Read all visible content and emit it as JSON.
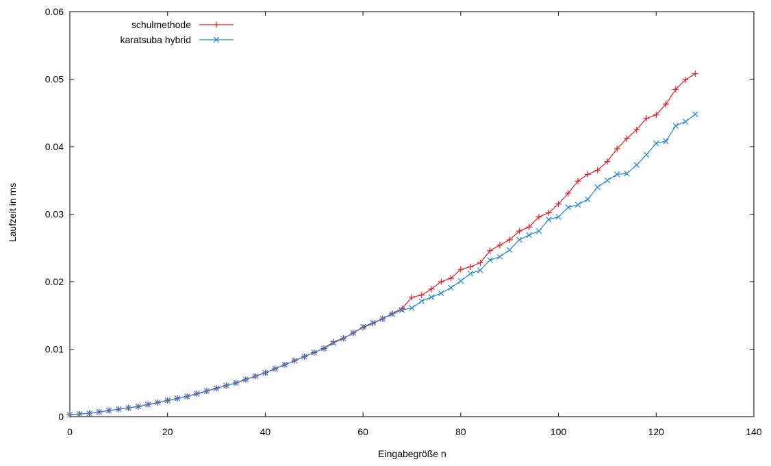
{
  "chart_data": {
    "type": "line",
    "title": "",
    "xlabel": "Eingabegröße n",
    "ylabel": "Laufzeit in ms",
    "xlim": [
      0,
      140
    ],
    "ylim": [
      0,
      0.06
    ],
    "xticks": [
      0,
      20,
      40,
      60,
      80,
      100,
      120,
      140
    ],
    "xtick_labels": [
      "0",
      "20",
      "40",
      "60",
      "80",
      "100",
      "120",
      "140"
    ],
    "yticks": [
      0,
      0.01,
      0.02,
      0.03,
      0.04,
      0.05,
      0.06
    ],
    "ytick_labels": [
      "0",
      "0.01",
      "0.02",
      "0.03",
      "0.04",
      "0.05",
      "0.06"
    ],
    "grid": false,
    "legend_position": "top-left",
    "x": [
      0,
      2,
      4,
      6,
      8,
      10,
      12,
      14,
      16,
      18,
      20,
      22,
      24,
      26,
      28,
      30,
      32,
      34,
      36,
      38,
      40,
      42,
      44,
      46,
      48,
      50,
      52,
      54,
      56,
      58,
      60,
      62,
      64,
      66,
      68,
      70,
      72,
      74,
      76,
      78,
      80,
      82,
      84,
      86,
      88,
      90,
      92,
      94,
      96,
      98,
      100,
      102,
      104,
      106,
      108,
      110,
      112,
      114,
      116,
      118,
      120,
      122,
      124,
      126,
      128
    ],
    "series": [
      {
        "name": "schulmethode",
        "color": "#e41a1c",
        "marker": "plus",
        "values": [
          0.0003,
          0.0004,
          0.0005,
          0.0007,
          0.0009,
          0.0011,
          0.0013,
          0.0015,
          0.0018,
          0.0021,
          0.0024,
          0.0027,
          0.003,
          0.0034,
          0.0038,
          0.0042,
          0.0046,
          0.005,
          0.0055,
          0.006,
          0.0065,
          0.0071,
          0.0077,
          0.0083,
          0.0089,
          0.0095,
          0.0101,
          0.0111,
          0.0116,
          0.0124,
          0.0132,
          0.0138,
          0.0145,
          0.0153,
          0.016,
          0.0177,
          0.018,
          0.0189,
          0.02,
          0.0205,
          0.0218,
          0.0222,
          0.0228,
          0.0246,
          0.0254,
          0.0262,
          0.0275,
          0.0281,
          0.0296,
          0.0302,
          0.0315,
          0.0331,
          0.0349,
          0.0359,
          0.0365,
          0.0378,
          0.0397,
          0.0412,
          0.0425,
          0.0442,
          0.0447,
          0.0463,
          0.0485,
          0.0499,
          0.0508
        ]
      },
      {
        "name": "karatsuba hybrid",
        "color": "#1a86e0",
        "marker": "cross",
        "values": [
          0.0003,
          0.0004,
          0.0005,
          0.0007,
          0.0009,
          0.0011,
          0.0013,
          0.0015,
          0.0018,
          0.0021,
          0.0024,
          0.0027,
          0.003,
          0.0034,
          0.0038,
          0.0042,
          0.0046,
          0.005,
          0.0055,
          0.006,
          0.0065,
          0.0071,
          0.0077,
          0.0083,
          0.0089,
          0.0095,
          0.0101,
          0.0109,
          0.0116,
          0.0124,
          0.0133,
          0.0139,
          0.0145,
          0.0152,
          0.0158,
          0.0161,
          0.0171,
          0.0177,
          0.0183,
          0.0191,
          0.0201,
          0.0212,
          0.0217,
          0.0232,
          0.0237,
          0.0247,
          0.0262,
          0.0269,
          0.0275,
          0.0292,
          0.0296,
          0.031,
          0.0314,
          0.0322,
          0.034,
          0.035,
          0.0359,
          0.036,
          0.0373,
          0.0388,
          0.0405,
          0.0408,
          0.0431,
          0.0437,
          0.0448
        ]
      }
    ]
  }
}
